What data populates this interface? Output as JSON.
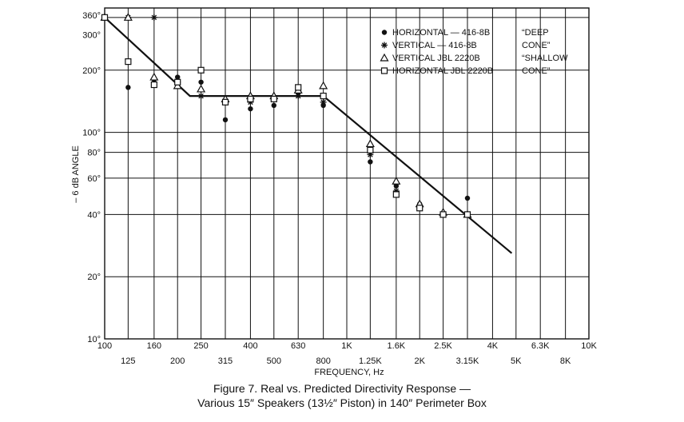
{
  "chart_data": {
    "type": "scatter",
    "title": "Figure 7. Real vs. Predicted Directivity Response —",
    "subtitle": "Various 15″ Speakers (13½″ Piston) in 140″ Perimeter Box",
    "xlabel": "FREQUENCY, Hz",
    "ylabel": "– 6 dB ANGLE",
    "x_scale": "log",
    "y_scale": "log",
    "xlim": [
      100,
      10000
    ],
    "ylim": [
      10,
      400
    ],
    "grid": true,
    "legend_position": "top-right",
    "x_ticks": [
      {
        "value": 100,
        "label": "100",
        "row": 0
      },
      {
        "value": 125,
        "label": "125",
        "row": 1
      },
      {
        "value": 160,
        "label": "160",
        "row": 0
      },
      {
        "value": 200,
        "label": "200",
        "row": 1
      },
      {
        "value": 250,
        "label": "250",
        "row": 0
      },
      {
        "value": 315,
        "label": "315",
        "row": 1
      },
      {
        "value": 400,
        "label": "400",
        "row": 0
      },
      {
        "value": 500,
        "label": "500",
        "row": 1
      },
      {
        "value": 630,
        "label": "630",
        "row": 0
      },
      {
        "value": 800,
        "label": "800",
        "row": 1
      },
      {
        "value": 1000,
        "label": "1K",
        "row": 0
      },
      {
        "value": 1250,
        "label": "1.25K",
        "row": 1
      },
      {
        "value": 1600,
        "label": "1.6K",
        "row": 0
      },
      {
        "value": 2000,
        "label": "2K",
        "row": 1
      },
      {
        "value": 2500,
        "label": "2.5K",
        "row": 0
      },
      {
        "value": 3150,
        "label": "3.15K",
        "row": 1
      },
      {
        "value": 4000,
        "label": "4K",
        "row": 0
      },
      {
        "value": 5000,
        "label": "5K",
        "row": 1
      },
      {
        "value": 6300,
        "label": "6.3K",
        "row": 0
      },
      {
        "value": 8000,
        "label": "8K",
        "row": 1
      },
      {
        "value": 10000,
        "label": "10K",
        "row": 0
      }
    ],
    "y_ticks": [
      {
        "value": 10,
        "label": "10°"
      },
      {
        "value": 20,
        "label": "20°"
      },
      {
        "value": 40,
        "label": "40°"
      },
      {
        "value": 60,
        "label": "60°"
      },
      {
        "value": 80,
        "label": "80°"
      },
      {
        "value": 100,
        "label": "100°"
      },
      {
        "value": 200,
        "label": "200°"
      },
      {
        "value": 300,
        "label": "300°"
      },
      {
        "value": 360,
        "label": "360°"
      }
    ],
    "y_gridlines": [
      10,
      20,
      40,
      60,
      80,
      100,
      200,
      360
    ],
    "series": [
      {
        "name": "HORIZONTAL — 416-8B",
        "marker": "dot",
        "points": [
          [
            100,
            360
          ],
          [
            125,
            165
          ],
          [
            160,
            180
          ],
          [
            200,
            185
          ],
          [
            250,
            175
          ],
          [
            315,
            115
          ],
          [
            400,
            130
          ],
          [
            500,
            135
          ],
          [
            630,
            155
          ],
          [
            800,
            135
          ],
          [
            1250,
            72
          ],
          [
            1600,
            55
          ],
          [
            2000,
            45
          ],
          [
            2500,
            40
          ],
          [
            3150,
            48
          ]
        ]
      },
      {
        "name": "VERTICAL — 416-8B",
        "marker": "asterisk",
        "points": [
          [
            100,
            360
          ],
          [
            125,
            360
          ],
          [
            160,
            360
          ],
          [
            200,
            175
          ],
          [
            250,
            150
          ],
          [
            315,
            140
          ],
          [
            400,
            140
          ],
          [
            500,
            145
          ],
          [
            630,
            150
          ],
          [
            800,
            140
          ],
          [
            1250,
            78
          ],
          [
            1600,
            52
          ],
          [
            2000,
            44
          ],
          [
            2500,
            40
          ],
          [
            3150,
            40
          ]
        ]
      },
      {
        "name": "VERTICAL JBL 2220B",
        "marker": "triangle",
        "points": [
          [
            100,
            360
          ],
          [
            125,
            360
          ],
          [
            160,
            185
          ],
          [
            200,
            168
          ],
          [
            250,
            162
          ],
          [
            315,
            145
          ],
          [
            400,
            150
          ],
          [
            500,
            150
          ],
          [
            630,
            160
          ],
          [
            800,
            168
          ],
          [
            1250,
            88
          ],
          [
            1600,
            58
          ],
          [
            2000,
            45
          ],
          [
            2500,
            41
          ],
          [
            3150,
            40
          ]
        ]
      },
      {
        "name": "HORIZONTAL JBL 2220B",
        "marker": "square",
        "points": [
          [
            100,
            360
          ],
          [
            125,
            220
          ],
          [
            160,
            170
          ],
          [
            200,
            175
          ],
          [
            250,
            200
          ],
          [
            315,
            140
          ],
          [
            400,
            145
          ],
          [
            500,
            145
          ],
          [
            630,
            165
          ],
          [
            800,
            150
          ],
          [
            1250,
            82
          ],
          [
            1600,
            50
          ],
          [
            2000,
            43
          ],
          [
            2500,
            40
          ],
          [
            3150,
            40
          ]
        ]
      },
      {
        "name": "",
        "marker": "line",
        "points": [
          [
            100,
            360
          ],
          [
            225,
            150
          ],
          [
            800,
            150
          ],
          [
            4800,
            26
          ]
        ]
      }
    ],
    "legend_groups": [
      {
        "label": "“DEEP\nCONE”"
      },
      {
        "label": "“SHALLOW\nCONE”"
      }
    ]
  }
}
